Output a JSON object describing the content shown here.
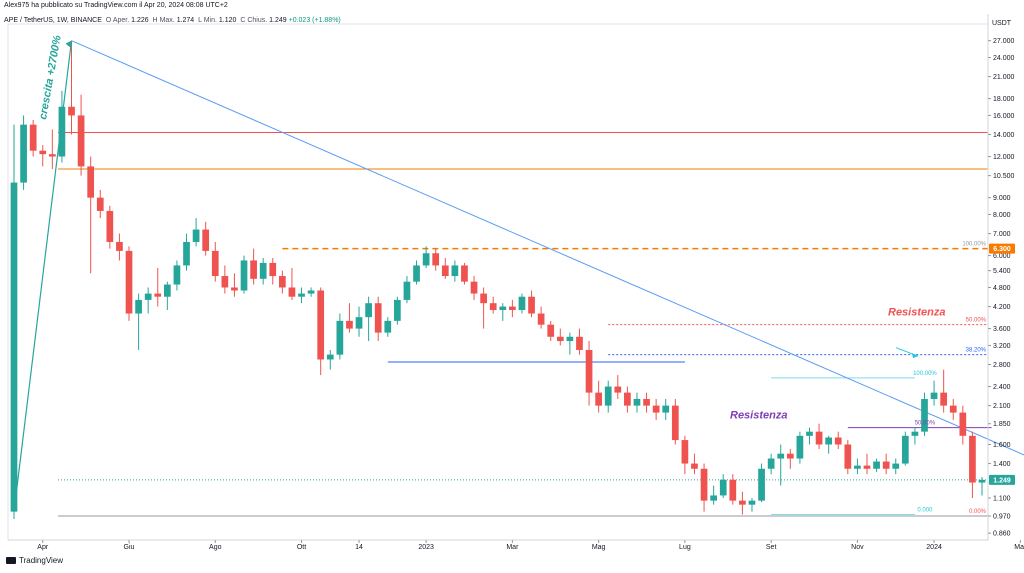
{
  "header": {
    "author_line": "Alex975 ha pubblicato su TradingView.com il Apr 20, 2024 08:08 UTC+2"
  },
  "legend": {
    "symbol": "APE / TetherUS, 1W, BINANCE",
    "open_label": "O",
    "open_text": "Aper.",
    "open": "1.226",
    "high_label": "H",
    "high_text": "Max.",
    "high": "1.274",
    "low_label": "L",
    "low_text": "Min.",
    "low": "1.120",
    "close_label": "C",
    "close_text": "Chius.",
    "close": "1.249",
    "change": "+0.023 (+1.88%)"
  },
  "footer": {
    "brand": "TradingView"
  },
  "colors": {
    "up": "#26a69a",
    "down": "#ef5350",
    "trendline": "#5b9cf6",
    "fib": "#2962ff",
    "resist_text": "#ef5350",
    "purple": "#7e3fb4",
    "orange": "#f57c00"
  },
  "chart_data": {
    "type": "candlestick",
    "title": "",
    "xlabel": "",
    "ylabel": "USDT",
    "y_scale": "log",
    "ylim": [
      0.82,
      29.5
    ],
    "price_unit": "USDT",
    "y_ticks": [
      27.0,
      24.0,
      21.0,
      18.0,
      16.0,
      14.0,
      12.0,
      10.5,
      9.0,
      8.0,
      7.0,
      6.0,
      5.4,
      4.8,
      4.2,
      3.6,
      3.2,
      2.8,
      2.4,
      2.1,
      1.85,
      1.6,
      1.4,
      1.249,
      1.1,
      0.97,
      0.86
    ],
    "y_tick_labels": [
      "27.000",
      "24.000",
      "21.000",
      "18.000",
      "16.000",
      "14.000",
      "12.000",
      "10.500",
      "9.000",
      "8.000",
      "7.000",
      "6.000",
      "5.400",
      "4.800",
      "4.200",
      "3.600",
      "3.200",
      "2.800",
      "2.400",
      "2.100",
      "1.850",
      "1.600",
      "1.400",
      "1.249",
      "1.100",
      "0.970",
      "0.860"
    ],
    "current_price": "1.249",
    "marked_price": "6.300",
    "x_ticks": [
      {
        "label": "Apr",
        "week": 3
      },
      {
        "label": "Giu",
        "week": 12
      },
      {
        "label": "Ago",
        "week": 21
      },
      {
        "label": "Ott",
        "week": 30
      },
      {
        "label": "14",
        "week": 36
      },
      {
        "label": "2023",
        "week": 43
      },
      {
        "label": "Mar",
        "week": 52
      },
      {
        "label": "Mag",
        "week": 61
      },
      {
        "label": "Lug",
        "week": 70
      },
      {
        "label": "Set",
        "week": 79
      },
      {
        "label": "Nov",
        "week": 88
      },
      {
        "label": "2024",
        "week": 96
      },
      {
        "label": "Mar",
        "week": 105
      }
    ],
    "candles": [
      {
        "o": 1.0,
        "h": 15.0,
        "l": 0.95,
        "c": 10.0
      },
      {
        "o": 10.0,
        "h": 16.0,
        "l": 9.5,
        "c": 15.0
      },
      {
        "o": 15.0,
        "h": 15.5,
        "l": 12.0,
        "c": 12.5
      },
      {
        "o": 12.5,
        "h": 13.0,
        "l": 11.2,
        "c": 12.2
      },
      {
        "o": 12.2,
        "h": 14.5,
        "l": 11.0,
        "c": 12.0
      },
      {
        "o": 12.0,
        "h": 19.0,
        "l": 11.5,
        "c": 17.0
      },
      {
        "o": 17.0,
        "h": 27.0,
        "l": 14.0,
        "c": 16.0
      },
      {
        "o": 16.0,
        "h": 18.5,
        "l": 10.5,
        "c": 11.2
      },
      {
        "o": 11.2,
        "h": 12.0,
        "l": 5.3,
        "c": 9.0
      },
      {
        "o": 9.0,
        "h": 9.5,
        "l": 7.8,
        "c": 8.2
      },
      {
        "o": 8.2,
        "h": 8.5,
        "l": 6.3,
        "c": 6.6
      },
      {
        "o": 6.6,
        "h": 7.0,
        "l": 5.8,
        "c": 6.2
      },
      {
        "o": 6.2,
        "h": 6.4,
        "l": 3.8,
        "c": 4.0
      },
      {
        "o": 4.0,
        "h": 4.6,
        "l": 3.1,
        "c": 4.4
      },
      {
        "o": 4.4,
        "h": 4.8,
        "l": 4.0,
        "c": 4.6
      },
      {
        "o": 4.6,
        "h": 5.5,
        "l": 4.2,
        "c": 4.5
      },
      {
        "o": 4.5,
        "h": 5.0,
        "l": 4.1,
        "c": 4.9
      },
      {
        "o": 4.9,
        "h": 5.8,
        "l": 4.7,
        "c": 5.6
      },
      {
        "o": 5.6,
        "h": 7.0,
        "l": 5.4,
        "c": 6.6
      },
      {
        "o": 6.6,
        "h": 7.8,
        "l": 6.4,
        "c": 7.2
      },
      {
        "o": 7.2,
        "h": 7.6,
        "l": 6.0,
        "c": 6.2
      },
      {
        "o": 6.2,
        "h": 6.6,
        "l": 5.0,
        "c": 5.2
      },
      {
        "o": 5.2,
        "h": 5.6,
        "l": 4.6,
        "c": 4.8
      },
      {
        "o": 4.8,
        "h": 5.3,
        "l": 4.5,
        "c": 4.7
      },
      {
        "o": 4.7,
        "h": 6.0,
        "l": 4.6,
        "c": 5.8
      },
      {
        "o": 5.8,
        "h": 6.3,
        "l": 4.9,
        "c": 5.1
      },
      {
        "o": 5.1,
        "h": 5.9,
        "l": 4.9,
        "c": 5.7
      },
      {
        "o": 5.7,
        "h": 5.9,
        "l": 4.9,
        "c": 5.2
      },
      {
        "o": 5.2,
        "h": 5.4,
        "l": 4.6,
        "c": 4.8
      },
      {
        "o": 4.8,
        "h": 5.5,
        "l": 4.4,
        "c": 4.5
      },
      {
        "o": 4.5,
        "h": 4.8,
        "l": 4.3,
        "c": 4.6
      },
      {
        "o": 4.6,
        "h": 4.8,
        "l": 4.5,
        "c": 4.7
      },
      {
        "o": 4.7,
        "h": 4.8,
        "l": 2.6,
        "c": 2.9
      },
      {
        "o": 2.9,
        "h": 3.1,
        "l": 2.7,
        "c": 3.0
      },
      {
        "o": 3.0,
        "h": 4.0,
        "l": 2.9,
        "c": 3.8
      },
      {
        "o": 3.8,
        "h": 4.3,
        "l": 3.5,
        "c": 3.6
      },
      {
        "o": 3.6,
        "h": 4.2,
        "l": 3.4,
        "c": 3.9
      },
      {
        "o": 3.9,
        "h": 4.5,
        "l": 3.3,
        "c": 4.3
      },
      {
        "o": 4.3,
        "h": 4.5,
        "l": 3.3,
        "c": 3.5
      },
      {
        "o": 3.5,
        "h": 3.9,
        "l": 3.4,
        "c": 3.8
      },
      {
        "o": 3.8,
        "h": 4.5,
        "l": 3.7,
        "c": 4.4
      },
      {
        "o": 4.4,
        "h": 5.2,
        "l": 4.3,
        "c": 5.0
      },
      {
        "o": 5.0,
        "h": 5.8,
        "l": 4.9,
        "c": 5.6
      },
      {
        "o": 5.6,
        "h": 6.4,
        "l": 5.5,
        "c": 6.1
      },
      {
        "o": 6.1,
        "h": 6.3,
        "l": 5.4,
        "c": 5.6
      },
      {
        "o": 5.6,
        "h": 5.9,
        "l": 5.1,
        "c": 5.2
      },
      {
        "o": 5.2,
        "h": 5.8,
        "l": 5.0,
        "c": 5.6
      },
      {
        "o": 5.6,
        "h": 5.7,
        "l": 4.9,
        "c": 5.0
      },
      {
        "o": 5.0,
        "h": 5.2,
        "l": 4.4,
        "c": 4.6
      },
      {
        "o": 4.6,
        "h": 4.8,
        "l": 3.6,
        "c": 4.3
      },
      {
        "o": 4.3,
        "h": 4.5,
        "l": 4.0,
        "c": 4.1
      },
      {
        "o": 4.1,
        "h": 4.3,
        "l": 3.8,
        "c": 4.2
      },
      {
        "o": 4.2,
        "h": 4.4,
        "l": 3.9,
        "c": 4.1
      },
      {
        "o": 4.1,
        "h": 4.6,
        "l": 4.0,
        "c": 4.5
      },
      {
        "o": 4.5,
        "h": 4.7,
        "l": 3.9,
        "c": 4.0
      },
      {
        "o": 4.0,
        "h": 4.2,
        "l": 3.6,
        "c": 3.7
      },
      {
        "o": 3.7,
        "h": 3.8,
        "l": 3.3,
        "c": 3.4
      },
      {
        "o": 3.4,
        "h": 3.6,
        "l": 3.2,
        "c": 3.3
      },
      {
        "o": 3.3,
        "h": 3.5,
        "l": 3.0,
        "c": 3.4
      },
      {
        "o": 3.4,
        "h": 3.6,
        "l": 3.0,
        "c": 3.1
      },
      {
        "o": 3.1,
        "h": 3.3,
        "l": 2.1,
        "c": 2.3
      },
      {
        "o": 2.3,
        "h": 2.5,
        "l": 2.0,
        "c": 2.1
      },
      {
        "o": 2.1,
        "h": 2.5,
        "l": 2.0,
        "c": 2.4
      },
      {
        "o": 2.4,
        "h": 2.6,
        "l": 2.2,
        "c": 2.3
      },
      {
        "o": 2.3,
        "h": 2.4,
        "l": 2.0,
        "c": 2.1
      },
      {
        "o": 2.1,
        "h": 2.3,
        "l": 2.0,
        "c": 2.2
      },
      {
        "o": 2.2,
        "h": 2.3,
        "l": 2.0,
        "c": 2.1
      },
      {
        "o": 2.1,
        "h": 2.2,
        "l": 1.9,
        "c": 2.0
      },
      {
        "o": 2.0,
        "h": 2.2,
        "l": 1.9,
        "c": 2.1
      },
      {
        "o": 2.1,
        "h": 2.2,
        "l": 1.6,
        "c": 1.65
      },
      {
        "o": 1.65,
        "h": 1.7,
        "l": 1.3,
        "c": 1.4
      },
      {
        "o": 1.4,
        "h": 1.5,
        "l": 1.3,
        "c": 1.35
      },
      {
        "o": 1.35,
        "h": 1.4,
        "l": 1.0,
        "c": 1.08
      },
      {
        "o": 1.08,
        "h": 1.2,
        "l": 1.05,
        "c": 1.12
      },
      {
        "o": 1.12,
        "h": 1.3,
        "l": 1.1,
        "c": 1.25
      },
      {
        "o": 1.25,
        "h": 1.3,
        "l": 1.05,
        "c": 1.08
      },
      {
        "o": 1.08,
        "h": 1.15,
        "l": 0.98,
        "c": 1.05
      },
      {
        "o": 1.05,
        "h": 1.1,
        "l": 1.0,
        "c": 1.08
      },
      {
        "o": 1.08,
        "h": 1.4,
        "l": 1.07,
        "c": 1.35
      },
      {
        "o": 1.35,
        "h": 1.5,
        "l": 1.3,
        "c": 1.45
      },
      {
        "o": 1.45,
        "h": 1.6,
        "l": 1.2,
        "c": 1.5
      },
      {
        "o": 1.5,
        "h": 1.55,
        "l": 1.35,
        "c": 1.45
      },
      {
        "o": 1.45,
        "h": 1.75,
        "l": 1.4,
        "c": 1.7
      },
      {
        "o": 1.7,
        "h": 1.8,
        "l": 1.6,
        "c": 1.75
      },
      {
        "o": 1.75,
        "h": 1.85,
        "l": 1.55,
        "c": 1.6
      },
      {
        "o": 1.6,
        "h": 1.7,
        "l": 1.5,
        "c": 1.68
      },
      {
        "o": 1.68,
        "h": 1.75,
        "l": 1.55,
        "c": 1.6
      },
      {
        "o": 1.6,
        "h": 1.65,
        "l": 1.3,
        "c": 1.35
      },
      {
        "o": 1.35,
        "h": 1.45,
        "l": 1.3,
        "c": 1.38
      },
      {
        "o": 1.38,
        "h": 1.5,
        "l": 1.3,
        "c": 1.35
      },
      {
        "o": 1.35,
        "h": 1.45,
        "l": 1.32,
        "c": 1.42
      },
      {
        "o": 1.42,
        "h": 1.5,
        "l": 1.3,
        "c": 1.35
      },
      {
        "o": 1.35,
        "h": 1.45,
        "l": 1.3,
        "c": 1.4
      },
      {
        "o": 1.4,
        "h": 1.75,
        "l": 1.38,
        "c": 1.7
      },
      {
        "o": 1.7,
        "h": 1.8,
        "l": 1.6,
        "c": 1.75
      },
      {
        "o": 1.75,
        "h": 2.3,
        "l": 1.7,
        "c": 2.2
      },
      {
        "o": 2.2,
        "h": 2.5,
        "l": 2.1,
        "c": 2.3
      },
      {
        "o": 2.3,
        "h": 2.7,
        "l": 2.0,
        "c": 2.1
      },
      {
        "o": 2.1,
        "h": 2.2,
        "l": 1.9,
        "c": 2.0
      },
      {
        "o": 2.0,
        "h": 2.1,
        "l": 1.6,
        "c": 1.7
      },
      {
        "o": 1.7,
        "h": 1.75,
        "l": 1.1,
        "c": 1.226
      },
      {
        "o": 1.226,
        "h": 1.274,
        "l": 1.12,
        "c": 1.249
      }
    ],
    "horizontal_lines": [
      {
        "price": 14.2,
        "color": "#ef5350",
        "style": "solid"
      },
      {
        "price": 11.0,
        "color": "#f57c00",
        "style": "solid"
      },
      {
        "price": 6.3,
        "color": "#f57c00",
        "style": "dashed",
        "from_week": 28
      },
      {
        "price": 2.85,
        "color": "#2962ff",
        "style": "solid",
        "from_week": 39,
        "to_week": 70
      },
      {
        "price": 1.8,
        "color": "#7e3fb4",
        "style": "solid",
        "from_week": 87,
        "to_week": 102
      },
      {
        "price": 0.97,
        "color": "#9598a1",
        "style": "solid"
      }
    ],
    "fibonacci": [
      {
        "label": "50.00%",
        "price": 3.7,
        "color": "#ef5350"
      },
      {
        "label": "38.20%",
        "price": 3.0,
        "color": "#2962ff"
      },
      {
        "label": "100.00%",
        "price": 6.3,
        "color": "#9598a1"
      },
      {
        "label": "0.00%",
        "price": 0.97,
        "color": "#ef5350"
      }
    ],
    "fib_small": [
      {
        "label": "100.00%",
        "price": 2.55,
        "color": "#26c6da"
      },
      {
        "label": "50.00%",
        "price": 1.8,
        "color": "#7e3fb4"
      },
      {
        "label": "0.000",
        "price": 0.98,
        "color": "#26c6da"
      }
    ],
    "trendline": {
      "from_week": 6,
      "from_price": 27.0,
      "to_week": 110,
      "to_price": 1.3
    },
    "annotations": [
      {
        "text": "crescita +2700%",
        "color": "#26a69a"
      },
      {
        "text": "Resistenza",
        "color": "#ef5350"
      },
      {
        "text": "Resistenza",
        "color": "#7e3fb4"
      }
    ]
  }
}
